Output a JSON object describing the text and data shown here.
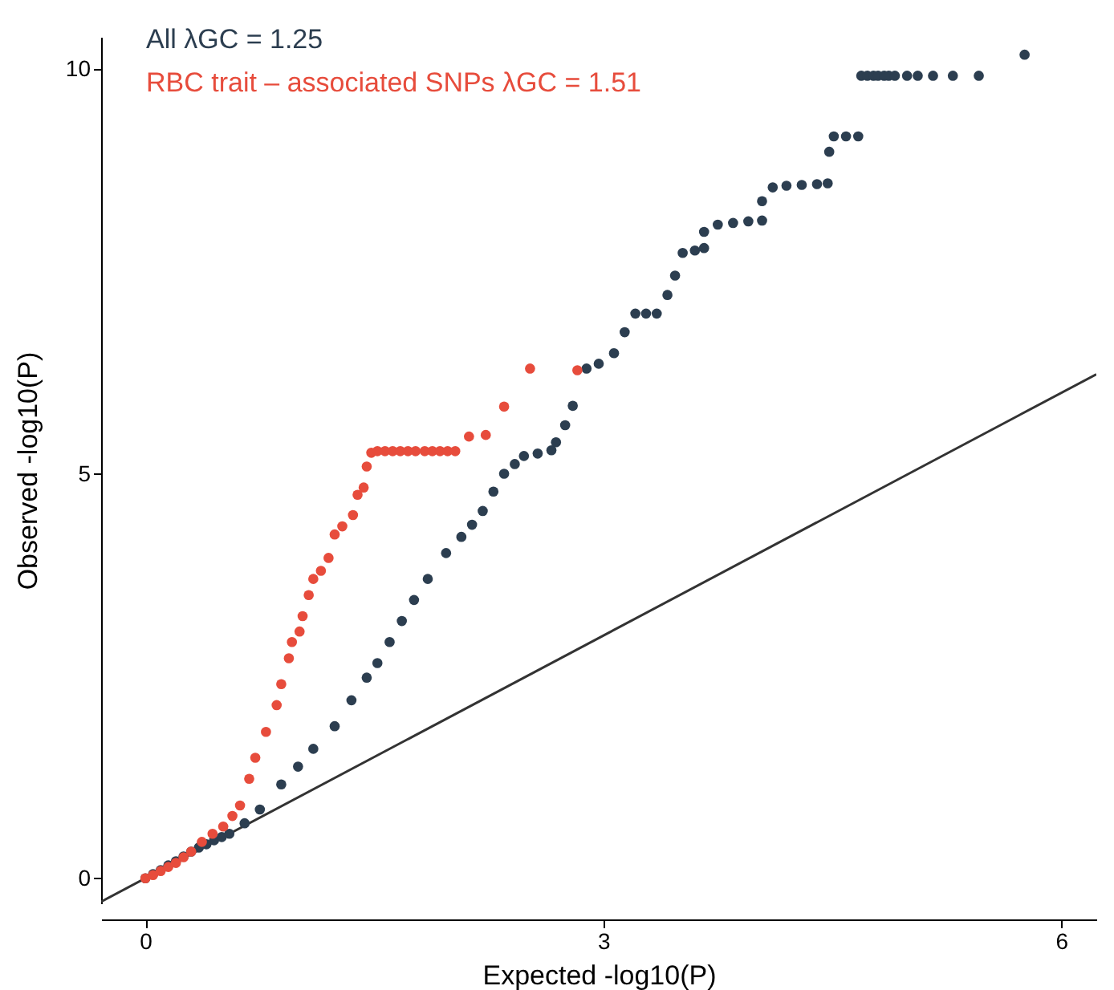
{
  "chart_data": {
    "type": "scatter",
    "xlabel": "Expected -log10(P)",
    "ylabel": "Observed -log10(P)",
    "xlim": [
      -0.29,
      6.23
    ],
    "ylim": [
      -0.31,
      10.4
    ],
    "xticks": [
      0,
      3,
      6
    ],
    "yticks": [
      0,
      5,
      10
    ],
    "grid": false,
    "legend": "top left",
    "series": [
      {
        "type": "line",
        "color": "#333333",
        "x": [
          -0.29,
          6.23
        ],
        "values": [
          -0.29,
          6.23
        ]
      },
      {
        "name": "All λGC = 1.25",
        "color": "#2c3e50",
        "marker": "circle",
        "x": [
          0,
          0.05,
          0.1,
          0.15,
          0.2,
          0.25,
          0.3,
          0.35,
          0.4,
          0.45,
          0.5,
          0.55,
          0.65,
          0.75,
          0.89,
          1.0,
          1.1,
          1.24,
          1.35,
          1.45,
          1.52,
          1.6,
          1.68,
          1.76,
          1.85,
          1.97,
          2.07,
          2.14,
          2.21,
          2.28,
          2.35,
          2.42,
          2.48,
          2.57,
          2.66,
          2.69,
          2.75,
          2.8,
          2.89,
          2.97,
          3.07,
          3.14,
          3.21,
          3.28,
          3.35,
          3.42,
          3.47,
          3.52,
          3.6,
          3.66,
          3.66,
          3.75,
          3.85,
          3.95,
          4.04,
          4.04,
          4.11,
          4.2,
          4.3,
          4.4,
          4.47,
          4.48,
          4.51,
          4.59,
          4.67,
          4.69,
          4.73,
          4.77,
          4.8,
          4.84,
          4.87,
          4.91,
          4.99,
          5.06,
          5.16,
          5.29,
          5.46,
          5.76
        ],
        "values": [
          0,
          0.05,
          0.1,
          0.16,
          0.21,
          0.27,
          0.33,
          0.38,
          0.42,
          0.47,
          0.51,
          0.55,
          0.68,
          0.85,
          1.16,
          1.38,
          1.6,
          1.88,
          2.2,
          2.48,
          2.66,
          2.92,
          3.18,
          3.44,
          3.7,
          4.02,
          4.22,
          4.37,
          4.54,
          4.78,
          5.0,
          5.12,
          5.22,
          5.25,
          5.29,
          5.39,
          5.6,
          5.84,
          6.3,
          6.36,
          6.49,
          6.75,
          6.98,
          6.98,
          6.98,
          7.21,
          7.45,
          7.73,
          7.76,
          7.79,
          7.99,
          8.08,
          8.1,
          8.12,
          8.13,
          8.37,
          8.54,
          8.56,
          8.57,
          8.58,
          8.59,
          8.98,
          9.17,
          9.17,
          9.17,
          9.92,
          9.92,
          9.92,
          9.92,
          9.92,
          9.92,
          9.92,
          9.92,
          9.92,
          9.92,
          9.92,
          9.92,
          10.18
        ]
      },
      {
        "name": "RBC trait – associated SNPs λGC = 1.51",
        "color": "#e74c3c",
        "marker": "circle",
        "x": [
          0,
          0.05,
          0.1,
          0.15,
          0.2,
          0.25,
          0.3,
          0.37,
          0.44,
          0.51,
          0.57,
          0.62,
          0.68,
          0.72,
          0.79,
          0.86,
          0.89,
          0.94,
          0.96,
          1.01,
          1.03,
          1.07,
          1.1,
          1.15,
          1.2,
          1.24,
          1.29,
          1.36,
          1.39,
          1.43,
          1.45,
          1.48,
          1.52,
          1.57,
          1.62,
          1.67,
          1.72,
          1.77,
          1.83,
          1.88,
          1.93,
          1.98,
          2.03,
          2.12,
          2.23,
          2.35,
          2.52,
          2.83
        ],
        "values": [
          0,
          0.04,
          0.09,
          0.14,
          0.19,
          0.26,
          0.33,
          0.45,
          0.55,
          0.64,
          0.77,
          0.9,
          1.23,
          1.49,
          1.81,
          2.14,
          2.4,
          2.72,
          2.92,
          3.05,
          3.24,
          3.5,
          3.7,
          3.8,
          3.96,
          4.25,
          4.35,
          4.49,
          4.74,
          4.83,
          5.09,
          5.26,
          5.28,
          5.28,
          5.28,
          5.28,
          5.28,
          5.28,
          5.28,
          5.28,
          5.28,
          5.28,
          5.28,
          5.46,
          5.48,
          5.83,
          6.3,
          6.28
        ]
      }
    ]
  }
}
